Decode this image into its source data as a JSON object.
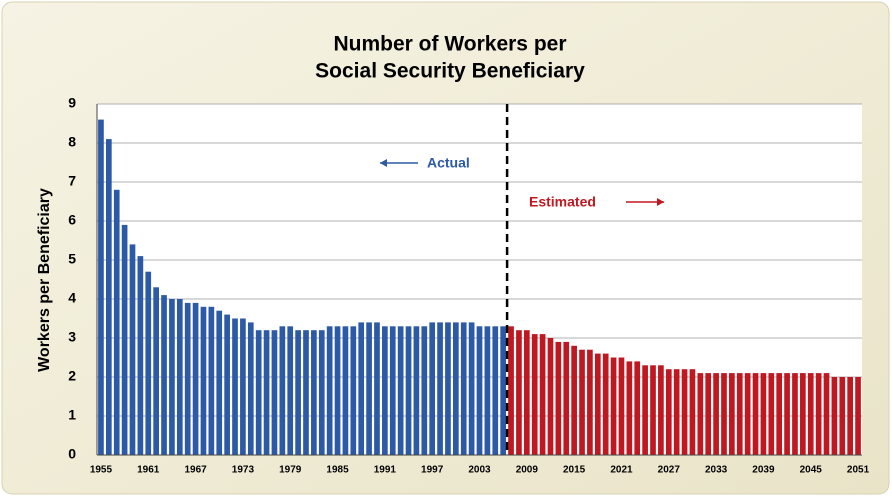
{
  "chart_data": {
    "type": "bar",
    "title": [
      "Number of Workers per",
      "Social Security Beneficiary"
    ],
    "y_label": "Workers per Beneficiary",
    "annotations": [
      "Actual",
      "Estimated"
    ],
    "categories": [
      "1955",
      null,
      null,
      null,
      null,
      null,
      "1961",
      null,
      null,
      null,
      null,
      null,
      "1967",
      null,
      null,
      null,
      null,
      null,
      "1973",
      null,
      null,
      null,
      null,
      null,
      "1979",
      null,
      null,
      null,
      null,
      null,
      "1985",
      null,
      null,
      null,
      null,
      null,
      "1991",
      null,
      null,
      null,
      null,
      null,
      "1997",
      null,
      null,
      null,
      null,
      null,
      "2003",
      null,
      null,
      null,
      null,
      null,
      "2009",
      null,
      null,
      null,
      null,
      null,
      "2015",
      null,
      null,
      null,
      null,
      null,
      "2021",
      null,
      null,
      null,
      null,
      null,
      "2027",
      null,
      null,
      null,
      null,
      null,
      "2033",
      null,
      null,
      null,
      null,
      null,
      "2039",
      null,
      null,
      null,
      null,
      null,
      "2045",
      null,
      null,
      null,
      null,
      null,
      "2051"
    ],
    "series": [
      {
        "name": "Actual",
        "color": "#2d5aa6",
        "values": [
          8.6,
          8.1,
          6.8,
          5.9,
          5.4,
          5.1,
          4.7,
          4.3,
          4.1,
          4.0,
          4.0,
          3.9,
          3.9,
          3.8,
          3.8,
          3.7,
          3.6,
          3.5,
          3.5,
          3.4,
          3.2,
          3.2,
          3.2,
          3.3,
          3.3,
          3.2,
          3.2,
          3.2,
          3.2,
          3.3,
          3.3,
          3.3,
          3.3,
          3.4,
          3.4,
          3.4,
          3.3,
          3.3,
          3.3,
          3.3,
          3.3,
          3.3,
          3.4,
          3.4,
          3.4,
          3.4,
          3.4,
          3.4,
          3.3,
          3.3,
          3.3,
          3.3,
          null,
          null,
          null,
          null,
          null,
          null,
          null,
          null,
          null,
          null,
          null,
          null,
          null,
          null,
          null,
          null,
          null,
          null,
          null,
          null,
          null,
          null,
          null,
          null,
          null,
          null,
          null,
          null,
          null,
          null,
          null,
          null,
          null,
          null,
          null,
          null,
          null,
          null,
          null,
          null,
          null,
          null,
          null,
          null,
          null
        ]
      },
      {
        "name": "Estimated",
        "color": "#c01820",
        "values": [
          null,
          null,
          null,
          null,
          null,
          null,
          null,
          null,
          null,
          null,
          null,
          null,
          null,
          null,
          null,
          null,
          null,
          null,
          null,
          null,
          null,
          null,
          null,
          null,
          null,
          null,
          null,
          null,
          null,
          null,
          null,
          null,
          null,
          null,
          null,
          null,
          null,
          null,
          null,
          null,
          null,
          null,
          null,
          null,
          null,
          null,
          null,
          null,
          null,
          null,
          null,
          null,
          3.3,
          3.2,
          3.2,
          3.1,
          3.1,
          3.0,
          2.9,
          2.9,
          2.8,
          2.7,
          2.7,
          2.6,
          2.6,
          2.5,
          2.5,
          2.4,
          2.4,
          2.3,
          2.3,
          2.3,
          2.2,
          2.2,
          2.2,
          2.2,
          2.1,
          2.1,
          2.1,
          2.1,
          2.1,
          2.1,
          2.1,
          2.1,
          2.1,
          2.1,
          2.1,
          2.1,
          2.1,
          2.1,
          2.1,
          2.1,
          2.1,
          2.0,
          2.0,
          2.0,
          2.0
        ]
      }
    ],
    "ylim": [
      0,
      9
    ],
    "yticks": [
      0,
      1,
      2,
      3,
      4,
      5,
      6,
      7,
      8,
      9
    ],
    "grid": true
  }
}
